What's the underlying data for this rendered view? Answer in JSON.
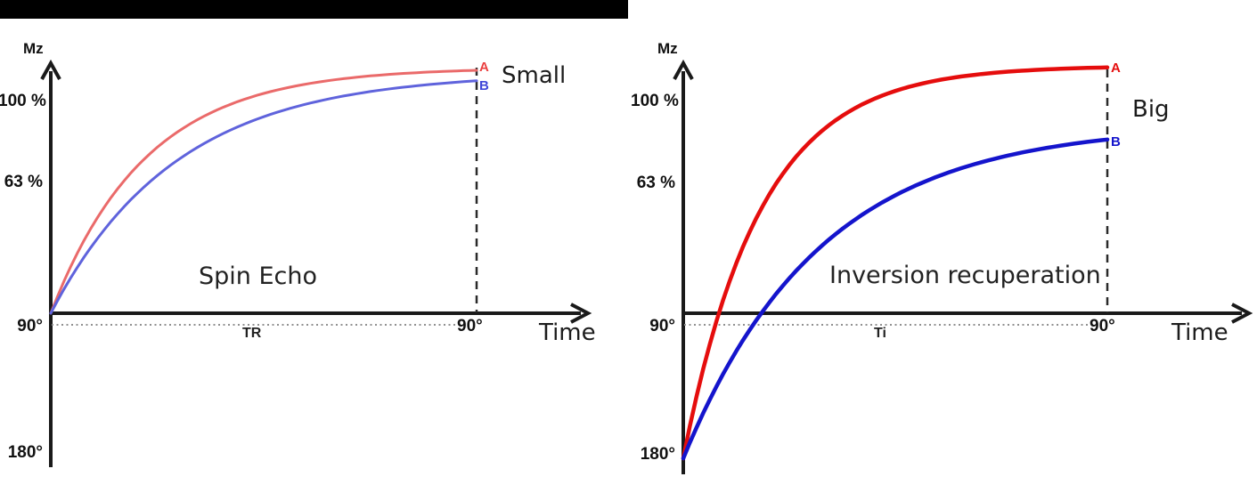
{
  "figure": {
    "background": "#ffffff",
    "top_bar_color": "#000000"
  },
  "chart_data": [
    {
      "type": "line",
      "title": "Spin Echo",
      "ylabel": "Mz",
      "xlabel": "Time",
      "annotation": "Small",
      "x_interval_label": "TR",
      "x_end_pulse_label": "90°",
      "grid": false,
      "yticks": [
        {
          "label": "100 %",
          "pct": 100
        },
        {
          "label": "63 %",
          "pct": 62
        },
        {
          "label": "90°",
          "pct": 0
        },
        {
          "label": "180°",
          "pct": -66
        }
      ],
      "series": [
        {
          "label": "A",
          "color": "#ea6a6a",
          "start_pct": 0,
          "asymptote_pct": 116.5,
          "rate": 4.5,
          "end_pct": 115,
          "line_width": 3
        },
        {
          "label": "B",
          "color": "#5f63dc",
          "start_pct": 0,
          "asymptote_pct": 114,
          "rate": 3.4,
          "end_pct": 110,
          "line_width": 3
        }
      ]
    },
    {
      "type": "line",
      "title": "Inversion recuperation",
      "ylabel": "Mz",
      "xlabel": "Time",
      "annotation": "Big",
      "x_interval_label": "Ti",
      "x_end_pulse_label": "90°",
      "grid": false,
      "yticks": [
        {
          "label": "100 %",
          "pct": 100
        },
        {
          "label": "63 %",
          "pct": 62
        },
        {
          "label": "90°",
          "pct": 0
        },
        {
          "label": "180°",
          "pct": -66
        }
      ],
      "series": [
        {
          "label": "A",
          "color": "#e50d0d",
          "start_pct": -68.8,
          "asymptote_pct": 117.3,
          "rate": 5.5,
          "end_pct": 116,
          "line_width": 4.5
        },
        {
          "label": "B",
          "color": "#1414cc",
          "start_pct": -68.8,
          "asymptote_pct": 89.5,
          "rate": 3.1,
          "end_pct": 81,
          "line_width": 4.5
        }
      ]
    }
  ]
}
